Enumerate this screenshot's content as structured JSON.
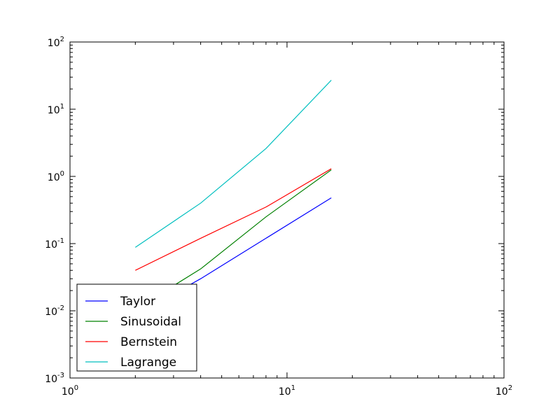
{
  "chart_data": {
    "type": "line",
    "title": "",
    "xlabel": "",
    "ylabel": "",
    "xscale": "log",
    "yscale": "log",
    "xlim": [
      1,
      100
    ],
    "ylim": [
      0.001,
      100
    ],
    "grid": false,
    "legend_position": "lower-left",
    "x_ticks": [
      {
        "value": 1,
        "base": "10",
        "exp": "0"
      },
      {
        "value": 10,
        "base": "10",
        "exp": "1"
      },
      {
        "value": 100,
        "base": "10",
        "exp": "2"
      }
    ],
    "y_ticks": [
      {
        "value": 0.001,
        "base": "10",
        "exp": "-3"
      },
      {
        "value": 0.01,
        "base": "10",
        "exp": "-2"
      },
      {
        "value": 0.1,
        "base": "10",
        "exp": "-1"
      },
      {
        "value": 1,
        "base": "10",
        "exp": "0"
      },
      {
        "value": 10,
        "base": "10",
        "exp": "1"
      },
      {
        "value": 100,
        "base": "10",
        "exp": "2"
      }
    ],
    "series": [
      {
        "name": "Taylor",
        "color": "#0000ff",
        "x": [
          2,
          4,
          8,
          16
        ],
        "y": [
          0.0085,
          0.03,
          0.12,
          0.48
        ]
      },
      {
        "name": "Sinusoidal",
        "color": "#008000",
        "x": [
          2,
          4,
          8,
          16
        ],
        "y": [
          0.0105,
          0.042,
          0.25,
          1.25
        ]
      },
      {
        "name": "Bernstein",
        "color": "#ff0000",
        "x": [
          2,
          4,
          8,
          16
        ],
        "y": [
          0.04,
          0.12,
          0.35,
          1.3
        ]
      },
      {
        "name": "Lagrange",
        "color": "#00bfbf",
        "x": [
          2,
          4,
          8,
          16
        ],
        "y": [
          0.088,
          0.4,
          2.6,
          27
        ]
      }
    ]
  }
}
